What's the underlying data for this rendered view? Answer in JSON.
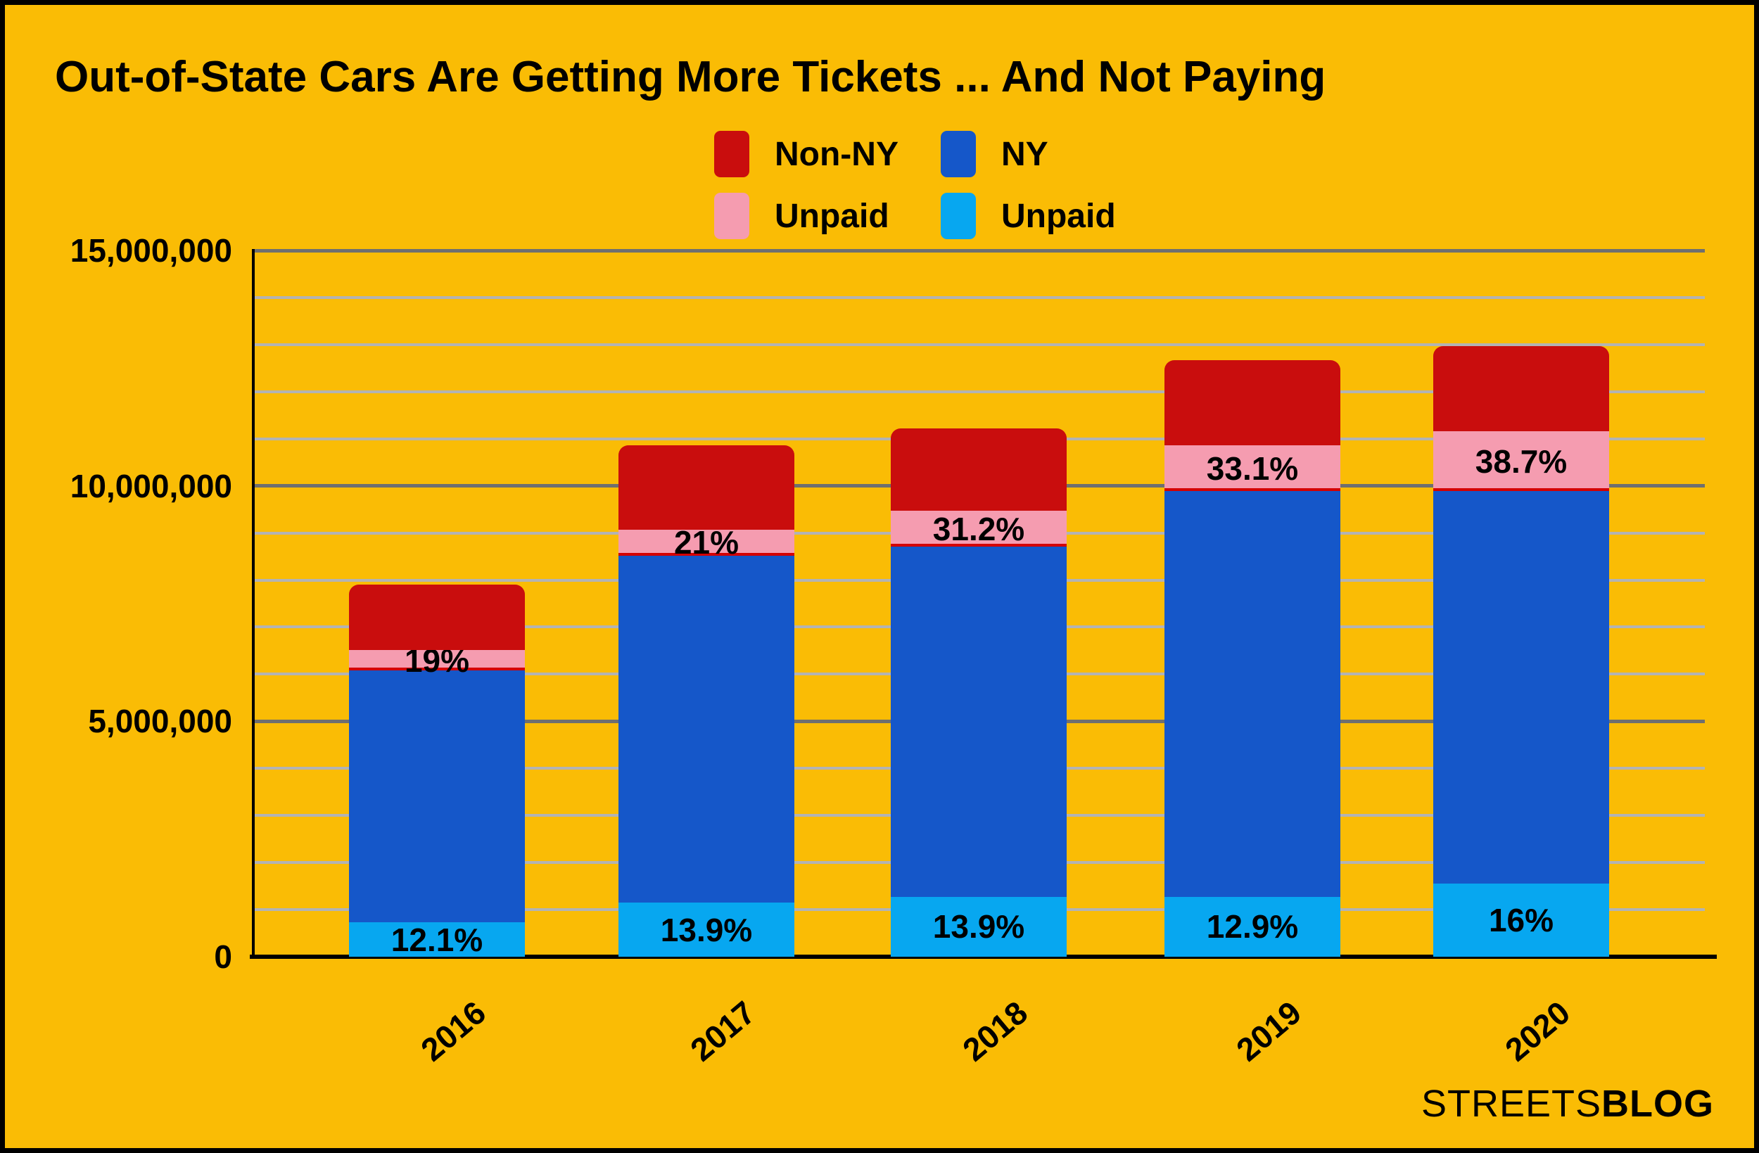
{
  "title": "Out-of-State Cars Are Getting More Tickets ... And Not Paying",
  "colors": {
    "background": "#FABC05",
    "non_ny_paid": "#C90D0D",
    "non_ny_unpaid": "#F59CB0",
    "ny_paid": "#1557C9",
    "ny_unpaid": "#07A7F0",
    "pink_divider": "#D40000",
    "grid_minor": "#B3B3B3",
    "grid_major": "#6F6F6F",
    "axis": "#000000",
    "text": "#000000"
  },
  "legend": {
    "items": [
      {
        "key": "non_ny_paid",
        "label": "Non-NY"
      },
      {
        "key": "ny_paid",
        "label": "NY"
      },
      {
        "key": "non_ny_unpaid",
        "label": "Unpaid"
      },
      {
        "key": "ny_unpaid",
        "label": "Unpaid"
      }
    ]
  },
  "chart_data": {
    "type": "bar",
    "stacked": true,
    "title": "Out-of-State Cars Are Getting More Tickets ... And Not Paying",
    "categories": [
      "2016",
      "2017",
      "2018",
      "2019",
      "2020"
    ],
    "y_axis": {
      "min": 0,
      "max": 15000000,
      "tick_values": [
        0,
        5000000,
        10000000,
        15000000
      ],
      "tick_labels": [
        "0",
        "5,000,000",
        "10,000,000",
        "15,000,000"
      ],
      "minor_grid_interval": 1000000,
      "major_grid_interval": 5000000,
      "grid": true
    },
    "legend_position": "top-center",
    "series": [
      {
        "name": "NY Unpaid",
        "key": "ny_unpaid",
        "values": [
          730000,
          1150000,
          1270000,
          1270000,
          1550000
        ],
        "labels": [
          "12.1%",
          "13.9%",
          "13.9%",
          "12.9%",
          "16%"
        ]
      },
      {
        "name": "NY",
        "key": "ny_paid",
        "values": [
          5350000,
          7370000,
          7440000,
          8620000,
          8340000
        ],
        "labels": null
      },
      {
        "name": "Non-NY Unpaid",
        "key": "non_ny_unpaid",
        "values": [
          430000,
          550000,
          760000,
          970000,
          1270000
        ],
        "labels": [
          "19%",
          "21%",
          "31.2%",
          "33.1%",
          "38.7%"
        ]
      },
      {
        "name": "Non-NY",
        "key": "non_ny_paid",
        "values": [
          1400000,
          1790000,
          1750000,
          1810000,
          1810000
        ],
        "labels": null
      }
    ],
    "bar_totals": [
      7910000,
      10860000,
      11220000,
      12670000,
      12970000
    ]
  },
  "footer": {
    "brand_regular": "STREETS",
    "brand_bold": "BLOG"
  }
}
